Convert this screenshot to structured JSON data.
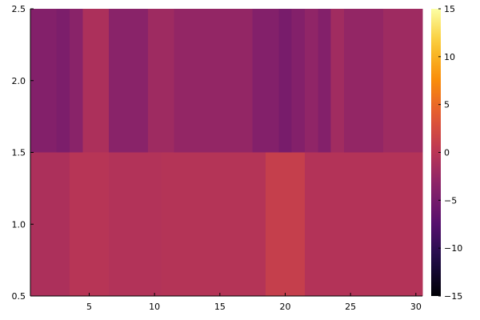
{
  "chart_data": {
    "type": "heatmap",
    "title": "",
    "xlabel": "",
    "ylabel": "",
    "x": [
      1,
      2,
      3,
      4,
      5,
      6,
      7,
      8,
      9,
      10,
      11,
      12,
      13,
      14,
      15,
      16,
      17,
      18,
      19,
      20,
      21,
      22,
      23,
      24,
      25,
      26,
      27,
      28,
      29,
      30
    ],
    "y": [
      1,
      2
    ],
    "xlim": [
      0.5,
      30.5
    ],
    "ylim": [
      0.5,
      2.5
    ],
    "x_ticks": [
      5,
      10,
      15,
      20,
      25,
      30
    ],
    "x_tick_labels": [
      "5",
      "10",
      "15",
      "20",
      "25",
      "30"
    ],
    "y_ticks": [
      0.5,
      1.0,
      1.5,
      2.0,
      2.5
    ],
    "y_tick_labels": [
      "0.5",
      "1.0",
      "1.5",
      "2.0",
      "2.5"
    ],
    "z": [
      [
        -1.0,
        -1.0,
        -1.0,
        -0.2,
        -0.2,
        -0.2,
        -0.6,
        -0.6,
        -0.6,
        -0.6,
        -0.4,
        -0.4,
        -0.4,
        -0.4,
        -0.4,
        -0.4,
        -0.4,
        -0.4,
        1.0,
        1.0,
        1.0,
        -0.5,
        -0.5,
        -0.5,
        -0.5,
        -0.5,
        -0.5,
        -0.5,
        -0.5,
        -0.5
      ],
      [
        -4.0,
        -4.0,
        -4.5,
        -3.5,
        -1.0,
        -1.0,
        -3.5,
        -3.5,
        -3.5,
        -2.0,
        -2.0,
        -2.8,
        -2.8,
        -2.8,
        -2.8,
        -2.8,
        -2.8,
        -4.0,
        -4.0,
        -4.8,
        -4.0,
        -3.0,
        -4.0,
        -1.8,
        -2.8,
        -2.8,
        -2.8,
        -2.0,
        -2.0,
        -2.0
      ]
    ],
    "colormap": "inferno",
    "clim": [
      -15,
      15
    ],
    "colorbar": {
      "ticks": [
        -15,
        -10,
        -5,
        0,
        5,
        10,
        15
      ],
      "tick_labels": [
        "−15",
        "−10",
        "−5",
        "0",
        "5",
        "10",
        "15"
      ]
    },
    "grid": false,
    "legend": "none"
  }
}
